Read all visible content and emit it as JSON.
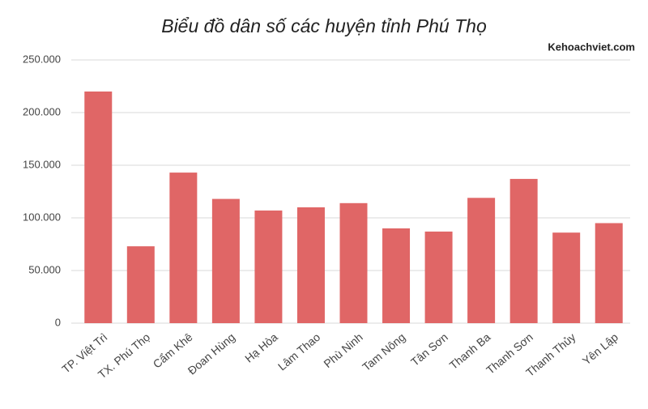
{
  "chart_data": {
    "type": "bar",
    "title": "Biểu đồ dân số các huyện tỉnh Phú Thọ",
    "watermark": "Kehoachviet.com",
    "categories": [
      "TP. Việt Trì",
      "TX. Phú Thọ",
      "Cẩm Khê",
      "Đoan Hùng",
      "Hạ Hòa",
      "Lâm Thao",
      "Phù Ninh",
      "Tam Nông",
      "Tân Sơn",
      "Thanh Ba",
      "Thanh Sơn",
      "Thanh Thủy",
      "Yên Lập"
    ],
    "values": [
      220000,
      73000,
      143000,
      118000,
      107000,
      110000,
      114000,
      90000,
      87000,
      119000,
      137000,
      86000,
      95000
    ],
    "color": "#e06666",
    "ylim": [
      0,
      250000
    ],
    "yticks": [
      0,
      {
        "value": 50000,
        "label": "50.000"
      },
      {
        "value": 100000,
        "label": "100.000"
      },
      {
        "value": 150000,
        "label": "150.000"
      },
      {
        "value": 200000,
        "label": "200.000"
      },
      {
        "value": 250000,
        "label": "250.000"
      }
    ],
    "grid": true
  }
}
